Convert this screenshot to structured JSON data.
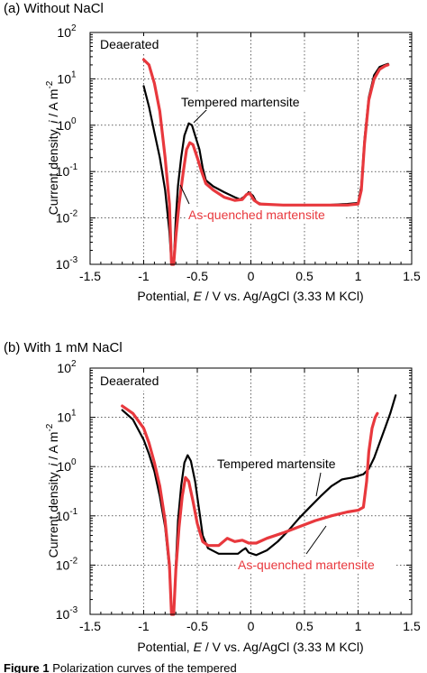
{
  "figure_caption_fragment": "Figure 1",
  "chart_data": [
    {
      "type": "line",
      "panel_label": "(a) Without NaCl",
      "condition": "Deaerated",
      "xlabel": "Potential, E / V vs. Ag/AgCl (3.33 M KCl)",
      "ylabel": "Current density, i / A m-2",
      "xlim": [
        -1.5,
        1.5
      ],
      "ylim": [
        0.001,
        100
      ],
      "yscale": "log",
      "grid": true,
      "x_ticks": [
        "-1.5",
        "-1",
        "-0.5",
        "0",
        "0.5",
        "1",
        "1.5"
      ],
      "y_ticks": [
        "10-3",
        "10-2",
        "10-1",
        "100",
        "101",
        "102"
      ],
      "series": [
        {
          "name": "Tempered martensite",
          "color": "#000000",
          "points": [
            [
              -1.0,
              7.0
            ],
            [
              -0.95,
              2.5
            ],
            [
              -0.9,
              0.7
            ],
            [
              -0.85,
              0.2
            ],
            [
              -0.8,
              0.04
            ],
            [
              -0.76,
              0.005
            ],
            [
              -0.74,
              0.001
            ],
            [
              -0.72,
              0.001
            ],
            [
              -0.7,
              0.01
            ],
            [
              -0.68,
              0.05
            ],
            [
              -0.65,
              0.2
            ],
            [
              -0.62,
              0.6
            ],
            [
              -0.58,
              1.1
            ],
            [
              -0.55,
              1.0
            ],
            [
              -0.52,
              0.6
            ],
            [
              -0.48,
              0.3
            ],
            [
              -0.45,
              0.12
            ],
            [
              -0.42,
              0.065
            ],
            [
              -0.35,
              0.048
            ],
            [
              -0.25,
              0.036
            ],
            [
              -0.15,
              0.028
            ],
            [
              -0.1,
              0.025
            ],
            [
              -0.05,
              0.03
            ],
            [
              -0.02,
              0.036
            ],
            [
              0.02,
              0.03
            ],
            [
              0.05,
              0.022
            ],
            [
              0.1,
              0.02
            ],
            [
              0.3,
              0.019
            ],
            [
              0.5,
              0.019
            ],
            [
              0.7,
              0.019
            ],
            [
              0.9,
              0.02
            ],
            [
              1.0,
              0.021
            ],
            [
              1.03,
              0.05
            ],
            [
              1.06,
              0.5
            ],
            [
              1.1,
              4.0
            ],
            [
              1.15,
              12.0
            ],
            [
              1.2,
              18.0
            ],
            [
              1.25,
              20.0
            ],
            [
              1.28,
              21.0
            ]
          ]
        },
        {
          "name": "As-quenched martensite",
          "color": "#e8383d",
          "points": [
            [
              -1.0,
              26.0
            ],
            [
              -0.95,
              20.0
            ],
            [
              -0.9,
              8.0
            ],
            [
              -0.85,
              2.0
            ],
            [
              -0.8,
              0.2
            ],
            [
              -0.76,
              0.02
            ],
            [
              -0.74,
              0.001
            ],
            [
              -0.72,
              0.001
            ],
            [
              -0.7,
              0.004
            ],
            [
              -0.67,
              0.02
            ],
            [
              -0.63,
              0.1
            ],
            [
              -0.6,
              0.3
            ],
            [
              -0.57,
              0.42
            ],
            [
              -0.54,
              0.38
            ],
            [
              -0.5,
              0.2
            ],
            [
              -0.46,
              0.1
            ],
            [
              -0.42,
              0.055
            ],
            [
              -0.35,
              0.04
            ],
            [
              -0.25,
              0.028
            ],
            [
              -0.15,
              0.024
            ],
            [
              -0.08,
              0.025
            ],
            [
              -0.04,
              0.032
            ],
            [
              -0.01,
              0.034
            ],
            [
              0.03,
              0.024
            ],
            [
              0.08,
              0.02
            ],
            [
              0.3,
              0.019
            ],
            [
              0.5,
              0.019
            ],
            [
              0.7,
              0.019
            ],
            [
              0.9,
              0.019
            ],
            [
              1.0,
              0.02
            ],
            [
              1.03,
              0.04
            ],
            [
              1.06,
              0.4
            ],
            [
              1.1,
              3.5
            ],
            [
              1.15,
              10.0
            ],
            [
              1.2,
              16.0
            ],
            [
              1.25,
              19.0
            ],
            [
              1.28,
              20.0
            ]
          ]
        }
      ],
      "annotations": [
        {
          "text": "Tempered martensite",
          "color": "#000000"
        },
        {
          "text": "As-quenched martensite",
          "color": "#e8383d"
        }
      ]
    },
    {
      "type": "line",
      "panel_label": "(b) With 1 mM NaCl",
      "condition": "Deaerated",
      "xlabel": "Potential, E / V vs. Ag/AgCl (3.33 M KCl)",
      "ylabel": "Current density, i / A m-2",
      "xlim": [
        -1.5,
        1.5
      ],
      "ylim": [
        0.001,
        100
      ],
      "yscale": "log",
      "grid": true,
      "x_ticks": [
        "-1.5",
        "-1",
        "-0.5",
        "0",
        "0.5",
        "1",
        "1.5"
      ],
      "y_ticks": [
        "10-3",
        "10-2",
        "10-1",
        "100",
        "101",
        "102"
      ],
      "series": [
        {
          "name": "Tempered martensite",
          "color": "#000000",
          "points": [
            [
              -1.2,
              14.0
            ],
            [
              -1.1,
              9.0
            ],
            [
              -1.0,
              3.5
            ],
            [
              -0.95,
              1.8
            ],
            [
              -0.9,
              0.8
            ],
            [
              -0.85,
              0.25
            ],
            [
              -0.8,
              0.06
            ],
            [
              -0.76,
              0.008
            ],
            [
              -0.74,
              0.001
            ],
            [
              -0.72,
              0.001
            ],
            [
              -0.7,
              0.01
            ],
            [
              -0.68,
              0.08
            ],
            [
              -0.65,
              0.4
            ],
            [
              -0.62,
              1.2
            ],
            [
              -0.59,
              1.7
            ],
            [
              -0.56,
              1.3
            ],
            [
              -0.52,
              0.5
            ],
            [
              -0.48,
              0.12
            ],
            [
              -0.45,
              0.04
            ],
            [
              -0.4,
              0.022
            ],
            [
              -0.3,
              0.017
            ],
            [
              -0.2,
              0.017
            ],
            [
              -0.12,
              0.017
            ],
            [
              -0.08,
              0.02
            ],
            [
              -0.05,
              0.022
            ],
            [
              -0.02,
              0.018
            ],
            [
              0.05,
              0.016
            ],
            [
              0.15,
              0.02
            ],
            [
              0.25,
              0.03
            ],
            [
              0.35,
              0.05
            ],
            [
              0.45,
              0.09
            ],
            [
              0.55,
              0.15
            ],
            [
              0.65,
              0.25
            ],
            [
              0.75,
              0.4
            ],
            [
              0.85,
              0.55
            ],
            [
              0.95,
              0.6
            ],
            [
              1.0,
              0.65
            ],
            [
              1.05,
              0.7
            ],
            [
              1.1,
              0.9
            ],
            [
              1.15,
              1.5
            ],
            [
              1.2,
              3.0
            ],
            [
              1.25,
              6.0
            ],
            [
              1.3,
              12.0
            ],
            [
              1.35,
              28.0
            ]
          ]
        },
        {
          "name": "As-quenched martensite",
          "color": "#e8383d",
          "points": [
            [
              -1.2,
              17.0
            ],
            [
              -1.1,
              12.0
            ],
            [
              -1.0,
              6.0
            ],
            [
              -0.95,
              3.0
            ],
            [
              -0.9,
              1.2
            ],
            [
              -0.85,
              0.4
            ],
            [
              -0.8,
              0.08
            ],
            [
              -0.76,
              0.01
            ],
            [
              -0.74,
              0.001
            ],
            [
              -0.72,
              0.001
            ],
            [
              -0.7,
              0.008
            ],
            [
              -0.67,
              0.06
            ],
            [
              -0.64,
              0.25
            ],
            [
              -0.61,
              0.6
            ],
            [
              -0.58,
              0.5
            ],
            [
              -0.54,
              0.2
            ],
            [
              -0.5,
              0.07
            ],
            [
              -0.45,
              0.03
            ],
            [
              -0.4,
              0.025
            ],
            [
              -0.3,
              0.025
            ],
            [
              -0.22,
              0.035
            ],
            [
              -0.15,
              0.03
            ],
            [
              -0.08,
              0.032
            ],
            [
              -0.02,
              0.028
            ],
            [
              0.05,
              0.028
            ],
            [
              0.15,
              0.035
            ],
            [
              0.3,
              0.045
            ],
            [
              0.45,
              0.06
            ],
            [
              0.6,
              0.08
            ],
            [
              0.75,
              0.1
            ],
            [
              0.9,
              0.12
            ],
            [
              1.0,
              0.13
            ],
            [
              1.05,
              0.15
            ],
            [
              1.08,
              0.5
            ],
            [
              1.1,
              2.0
            ],
            [
              1.13,
              6.0
            ],
            [
              1.16,
              10.0
            ],
            [
              1.18,
              12.0
            ]
          ]
        }
      ],
      "annotations": [
        {
          "text": "Tempered martensite",
          "color": "#000000"
        },
        {
          "text": "As-quenched martensite",
          "color": "#e8383d"
        }
      ]
    }
  ],
  "labels": {
    "a_panel": "(a) Without NaCl",
    "b_panel": "(b) With 1 mM NaCl",
    "a_condition": "Deaerated",
    "b_condition": "Deaerated",
    "a_annot_tempered": "Tempered martensite",
    "a_annot_quenched": "As-quenched martensite",
    "b_annot_tempered": "Tempered martensite",
    "b_annot_quenched": "As-quenched martensite",
    "x_title_pre": "Potential, ",
    "x_title_E": "E",
    "x_title_post": " / V vs. Ag/AgCl (3.33 M KCl)",
    "y_title_pre": "Current density, ",
    "y_title_i": "i",
    "y_title_post": " / A m",
    "y_title_sup": "-2",
    "x_ticks": [
      "-1.5",
      "-1",
      "-0.5",
      "0",
      "0.5",
      "1",
      "1.5"
    ],
    "y_tick_base": "10",
    "y_tick_exps": [
      "-3",
      "-2",
      "-1",
      "0",
      "1",
      "2"
    ],
    "caption_bold": "Figure 1",
    "caption_rest": " Polarization curves of the tempered"
  }
}
